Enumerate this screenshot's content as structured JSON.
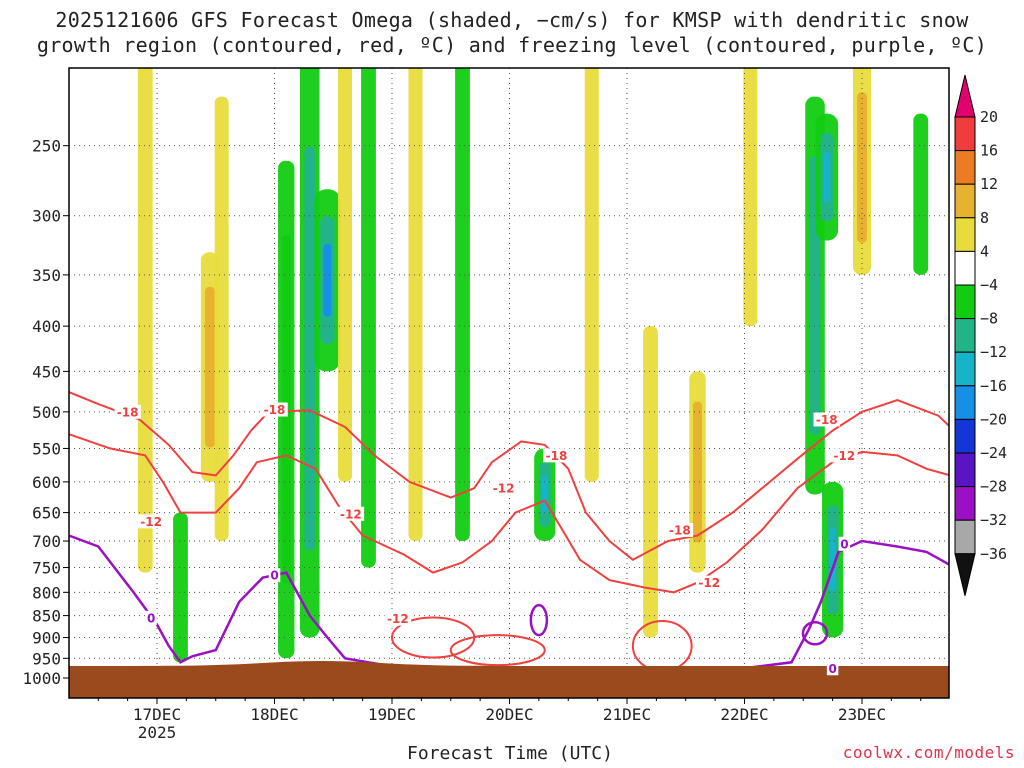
{
  "title_line1": "2025121606 GFS Forecast Omega (shaded, −cm/s) for KMSP with dendritic snow",
  "title_line2": "growth region (contoured, red, ºC) and freezing level (contoured, purple, ºC)",
  "credit": "coolwx.com/models",
  "chart_data": {
    "type": "heatmap",
    "title": "2025121606 GFS Forecast Omega (shaded, −cm/s) for KMSP with dendritic snow growth region (contoured, red, ºC) and freezing level (contoured, purple, ºC)",
    "xlabel": "Forecast Time (UTC)",
    "ylabel": "",
    "x_ticks": [
      "17DEC",
      "18DEC",
      "19DEC",
      "20DEC",
      "21DEC",
      "22DEC",
      "23DEC"
    ],
    "x_tick_sublabel": {
      "17DEC": "2025"
    },
    "x_range": [
      "2025-12-16 06Z",
      "2025-12-23 18Z"
    ],
    "y_ticks_hpa": [
      250,
      300,
      350,
      400,
      450,
      500,
      550,
      600,
      650,
      700,
      750,
      800,
      850,
      900,
      950,
      1000
    ],
    "y_range_hpa": [
      200,
      1000
    ],
    "y_scale": "log-pressure",
    "grid": "dotted",
    "colorbar": {
      "ticks": [
        "20",
        "16",
        "12",
        "8",
        "4",
        "−4",
        "−8",
        "−12",
        "−16",
        "−20",
        "−24",
        "−28",
        "−32",
        "−36"
      ],
      "colors": [
        "#e2006f",
        "#f03c3c",
        "#ec7c22",
        "#e6b230",
        "#e8dc3c",
        "#ffffff",
        "#12cc12",
        "#22b488",
        "#16b4c8",
        "#1690e6",
        "#1436d8",
        "#5a14c4",
        "#9a10c4",
        "#a8a8a8",
        "#111111"
      ]
    },
    "omega_regions": [
      {
        "day": 16.9,
        "p_top": 200,
        "p_bottom": 760,
        "value": 6
      },
      {
        "day": 17.45,
        "p_top": 330,
        "p_bottom": 600,
        "value": 10
      },
      {
        "day": 17.55,
        "p_top": 220,
        "p_bottom": 700,
        "value": 5
      },
      {
        "day": 17.2,
        "p_top": 650,
        "p_bottom": 960,
        "value": -6
      },
      {
        "day": 18.1,
        "p_top": 260,
        "p_bottom": 950,
        "value": -8
      },
      {
        "day": 18.3,
        "p_top": 200,
        "p_bottom": 900,
        "value": -12
      },
      {
        "day": 18.45,
        "p_top": 280,
        "p_bottom": 450,
        "value": -20
      },
      {
        "day": 18.6,
        "p_top": 200,
        "p_bottom": 600,
        "value": 5
      },
      {
        "day": 18.8,
        "p_top": 200,
        "p_bottom": 750,
        "value": -6
      },
      {
        "day": 19.2,
        "p_top": 200,
        "p_bottom": 700,
        "value": 5
      },
      {
        "day": 19.6,
        "p_top": 200,
        "p_bottom": 700,
        "value": -6
      },
      {
        "day": 20.3,
        "p_top": 550,
        "p_bottom": 700,
        "value": -14
      },
      {
        "day": 20.7,
        "p_top": 200,
        "p_bottom": 600,
        "value": 5
      },
      {
        "day": 21.2,
        "p_top": 400,
        "p_bottom": 900,
        "value": 6
      },
      {
        "day": 21.6,
        "p_top": 450,
        "p_bottom": 760,
        "value": 8
      },
      {
        "day": 22.05,
        "p_top": 200,
        "p_bottom": 400,
        "value": 5
      },
      {
        "day": 22.6,
        "p_top": 220,
        "p_bottom": 620,
        "value": -12
      },
      {
        "day": 22.7,
        "p_top": 230,
        "p_bottom": 320,
        "value": -16
      },
      {
        "day": 22.75,
        "p_top": 600,
        "p_bottom": 900,
        "value": -14
      },
      {
        "day": 23.0,
        "p_top": 200,
        "p_bottom": 350,
        "value": 10
      },
      {
        "day": 23.5,
        "p_top": 230,
        "p_bottom": 350,
        "value": -6
      }
    ],
    "contour_labels": [
      {
        "text": "-18",
        "day": 16.75,
        "p": 500,
        "color": "#f04040"
      },
      {
        "text": "-12",
        "day": 16.95,
        "p": 665,
        "color": "#f04040"
      },
      {
        "text": "-18",
        "day": 18.0,
        "p": 497,
        "color": "#f04040"
      },
      {
        "text": "-12",
        "day": 18.65,
        "p": 652,
        "color": "#f04040"
      },
      {
        "text": "-12",
        "day": 19.05,
        "p": 857,
        "color": "#f04040"
      },
      {
        "text": "-12",
        "day": 19.95,
        "p": 610,
        "color": "#f04040"
      },
      {
        "text": "-18",
        "day": 20.4,
        "p": 560,
        "color": "#f04040"
      },
      {
        "text": "-18",
        "day": 21.45,
        "p": 680,
        "color": "#f04040"
      },
      {
        "text": "-12",
        "day": 21.7,
        "p": 780,
        "color": "#f04040"
      },
      {
        "text": "-18",
        "day": 22.7,
        "p": 510,
        "color": "#f04040"
      },
      {
        "text": "-12",
        "day": 22.85,
        "p": 560,
        "color": "#f04040"
      },
      {
        "text": "0",
        "day": 16.95,
        "p": 855,
        "color": "#9a10c4"
      },
      {
        "text": "0",
        "day": 18.0,
        "p": 765,
        "color": "#9a10c4"
      },
      {
        "text": "0",
        "day": 22.85,
        "p": 705,
        "color": "#9a10c4"
      },
      {
        "text": "0",
        "day": 22.75,
        "p": 975,
        "color": "#9a10c4"
      }
    ],
    "dgz_upper_minus18": [
      [
        16.25,
        475
      ],
      [
        16.5,
        490
      ],
      [
        16.85,
        510
      ],
      [
        17.1,
        545
      ],
      [
        17.3,
        585
      ],
      [
        17.5,
        590
      ],
      [
        17.65,
        560
      ],
      [
        17.8,
        525
      ],
      [
        17.95,
        500
      ],
      [
        18.3,
        498
      ],
      [
        18.6,
        520
      ],
      [
        18.85,
        560
      ],
      [
        19.15,
        600
      ],
      [
        19.5,
        625
      ],
      [
        19.7,
        610
      ],
      [
        19.85,
        570
      ],
      [
        20.1,
        540
      ],
      [
        20.3,
        545
      ],
      [
        20.5,
        580
      ],
      [
        20.65,
        650
      ],
      [
        20.85,
        700
      ],
      [
        21.05,
        735
      ],
      [
        21.35,
        700
      ],
      [
        21.6,
        690
      ],
      [
        21.9,
        650
      ],
      [
        22.15,
        610
      ],
      [
        22.45,
        565
      ],
      [
        22.75,
        525
      ],
      [
        23.0,
        500
      ],
      [
        23.3,
        485
      ],
      [
        23.65,
        505
      ],
      [
        23.75,
        520
      ]
    ],
    "dgz_lower_minus12": [
      [
        16.25,
        530
      ],
      [
        16.6,
        550
      ],
      [
        16.9,
        560
      ],
      [
        17.05,
        600
      ],
      [
        17.2,
        650
      ],
      [
        17.5,
        650
      ],
      [
        17.7,
        610
      ],
      [
        17.85,
        570
      ],
      [
        18.1,
        560
      ],
      [
        18.35,
        580
      ],
      [
        18.55,
        640
      ],
      [
        18.75,
        690
      ],
      [
        19.1,
        725
      ],
      [
        19.35,
        760
      ],
      [
        19.6,
        740
      ],
      [
        19.85,
        700
      ],
      [
        20.05,
        650
      ],
      [
        20.3,
        630
      ],
      [
        20.45,
        680
      ],
      [
        20.6,
        735
      ],
      [
        20.85,
        775
      ],
      [
        21.15,
        790
      ],
      [
        21.4,
        800
      ],
      [
        21.6,
        780
      ],
      [
        21.85,
        740
      ],
      [
        22.15,
        680
      ],
      [
        22.45,
        610
      ],
      [
        22.75,
        570
      ],
      [
        23.0,
        555
      ],
      [
        23.3,
        560
      ],
      [
        23.55,
        580
      ],
      [
        23.75,
        590
      ]
    ],
    "freezing_level_0c": [
      [
        16.25,
        690
      ],
      [
        16.5,
        710
      ],
      [
        16.8,
        800
      ],
      [
        17.0,
        870
      ],
      [
        17.1,
        920
      ],
      [
        17.2,
        960
      ],
      [
        17.3,
        945
      ],
      [
        17.5,
        930
      ],
      [
        17.7,
        820
      ],
      [
        17.9,
        770
      ],
      [
        18.1,
        760
      ],
      [
        18.3,
        850
      ],
      [
        18.45,
        900
      ],
      [
        18.6,
        950
      ],
      [
        19.0,
        970
      ],
      [
        19.4,
        975
      ],
      [
        20.0,
        975
      ],
      [
        20.6,
        975
      ],
      [
        21.0,
        975
      ],
      [
        21.6,
        975
      ],
      [
        22.0,
        975
      ],
      [
        22.4,
        960
      ],
      [
        22.55,
        880
      ],
      [
        22.65,
        820
      ],
      [
        22.8,
        720
      ],
      [
        23.0,
        700
      ],
      [
        23.3,
        710
      ],
      [
        23.55,
        720
      ],
      [
        23.75,
        745
      ]
    ]
  }
}
